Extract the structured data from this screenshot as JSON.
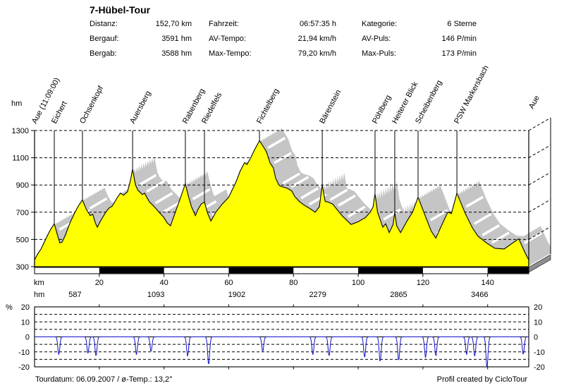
{
  "title": "7-Hübel-Tour",
  "stats": [
    {
      "label": "Distanz:",
      "value": "152,70 km"
    },
    {
      "label": "Fahrzeit:",
      "value": "06:57:35 h"
    },
    {
      "label": "Kategorie:",
      "value": "6 Sterne"
    },
    {
      "label": "Bergauf:",
      "value": "3591 hm"
    },
    {
      "label": "AV-Tempo:",
      "value": "21,94 km/h"
    },
    {
      "label": "AV-Puls:",
      "value": "146 P/min"
    },
    {
      "label": "Bergab:",
      "value": "3588 hm"
    },
    {
      "label": "Max-Tempo:",
      "value": "79,20 km/h"
    },
    {
      "label": "Max-Puls:",
      "value": "173 P/min"
    }
  ],
  "footer": {
    "left": "Tourdatum: 06.09.2007  /  ø-Temp.: 13,2°",
    "right": "Profil created by CicloTour"
  },
  "chart_data": [
    {
      "type": "area",
      "title": "Elevation profile with 3D extrusion",
      "xlabel": "km",
      "ylabel": "hm",
      "xlim": [
        0,
        152.7
      ],
      "ylim": [
        300,
        1300
      ],
      "yticks": [
        300,
        500,
        700,
        900,
        1100,
        1300
      ],
      "xticks": [
        20,
        40,
        60,
        80,
        100,
        120,
        140
      ],
      "fill_color": "#ffff00",
      "extrusion_color": "#c5c5c5",
      "floor_color": "#8f8f8f",
      "climb_label_color": "#dd0000",
      "climb_row_unit": "hm",
      "climb_labels": [
        [
          12.5,
          "587"
        ],
        [
          37.5,
          "1093"
        ],
        [
          62.5,
          "1902"
        ],
        [
          87.5,
          "2279"
        ],
        [
          112.5,
          "2865"
        ],
        [
          137.5,
          "3466"
        ]
      ],
      "markers": [
        {
          "km": 0,
          "label": "Aue (11:09:00)"
        },
        {
          "km": 6.1,
          "label": "Eichert"
        },
        {
          "km": 14.8,
          "label": "Ochsenkopf"
        },
        {
          "km": 30.3,
          "label": "Auersberg"
        },
        {
          "km": 46.6,
          "label": "Rabenberg"
        },
        {
          "km": 52.5,
          "label": "Riedelfels"
        },
        {
          "km": 69.5,
          "label": "Fichtelberg"
        },
        {
          "km": 88.9,
          "label": "Bärenstein"
        },
        {
          "km": 105.2,
          "label": "Pöhlberg"
        },
        {
          "km": 111.3,
          "label": "Heiterer Blick"
        },
        {
          "km": 118.5,
          "label": "Scheibenberg"
        },
        {
          "km": 130.5,
          "label": "PSW Markersbach"
        },
        {
          "km": 152.7,
          "label": "Aue",
          "ly": 155,
          "dx": 6
        }
      ],
      "points": [
        [
          0,
          350
        ],
        [
          1,
          395
        ],
        [
          2,
          430
        ],
        [
          3,
          480
        ],
        [
          4,
          530
        ],
        [
          5,
          575
        ],
        [
          6.1,
          615
        ],
        [
          7,
          540
        ],
        [
          7.8,
          475
        ],
        [
          8.5,
          480
        ],
        [
          9.5,
          530
        ],
        [
          11,
          625
        ],
        [
          12.5,
          700
        ],
        [
          13.5,
          745
        ],
        [
          14.8,
          790
        ],
        [
          16,
          720
        ],
        [
          17.2,
          675
        ],
        [
          18,
          685
        ],
        [
          18.8,
          620
        ],
        [
          19.4,
          590
        ],
        [
          20.5,
          640
        ],
        [
          22,
          700
        ],
        [
          23,
          730
        ],
        [
          24,
          745
        ],
        [
          25.5,
          805
        ],
        [
          26.5,
          840
        ],
        [
          27.5,
          825
        ],
        [
          28.7,
          850
        ],
        [
          29.5,
          920
        ],
        [
          30.3,
          1015
        ],
        [
          31.2,
          900
        ],
        [
          32,
          860
        ],
        [
          33.3,
          830
        ],
        [
          34,
          840
        ],
        [
          35.5,
          775
        ],
        [
          37,
          740
        ],
        [
          38.5,
          700
        ],
        [
          40,
          660
        ],
        [
          41,
          620
        ],
        [
          42,
          600
        ],
        [
          43.5,
          700
        ],
        [
          45,
          800
        ],
        [
          46.6,
          910
        ],
        [
          47.5,
          820
        ],
        [
          48.5,
          740
        ],
        [
          49.7,
          675
        ],
        [
          50.5,
          720
        ],
        [
          51.5,
          760
        ],
        [
          52.5,
          775
        ],
        [
          53.5,
          690
        ],
        [
          54.5,
          635
        ],
        [
          56,
          700
        ],
        [
          58,
          760
        ],
        [
          60,
          810
        ],
        [
          61,
          860
        ],
        [
          62.3,
          925
        ],
        [
          63.5,
          1000
        ],
        [
          64.9,
          1065
        ],
        [
          65.6,
          1050
        ],
        [
          66.7,
          1095
        ],
        [
          68,
          1160
        ],
        [
          69.5,
          1225
        ],
        [
          71,
          1170
        ],
        [
          71.7,
          1140
        ],
        [
          72.8,
          1060
        ],
        [
          73.8,
          1025
        ],
        [
          74.5,
          950
        ],
        [
          75.5,
          900
        ],
        [
          76.1,
          890
        ],
        [
          78.2,
          875
        ],
        [
          79.5,
          855
        ],
        [
          80.4,
          815
        ],
        [
          82,
          775
        ],
        [
          83.4,
          750
        ],
        [
          85.2,
          725
        ],
        [
          86.7,
          700
        ],
        [
          88,
          740
        ],
        [
          88.9,
          900
        ],
        [
          89.8,
          780
        ],
        [
          90.6,
          775
        ],
        [
          92.1,
          760
        ],
        [
          95,
          675
        ],
        [
          97.8,
          610
        ],
        [
          100,
          630
        ],
        [
          102.2,
          660
        ],
        [
          103.7,
          700
        ],
        [
          104.6,
          740
        ],
        [
          105.2,
          835
        ],
        [
          106,
          700
        ],
        [
          107.6,
          590
        ],
        [
          108.5,
          615
        ],
        [
          109.6,
          550
        ],
        [
          110.8,
          610
        ],
        [
          111.3,
          700
        ],
        [
          111.9,
          600
        ],
        [
          113.1,
          550
        ],
        [
          115.2,
          640
        ],
        [
          116.8,
          700
        ],
        [
          118.5,
          810
        ],
        [
          121.1,
          650
        ],
        [
          122.6,
          560
        ],
        [
          124,
          510
        ],
        [
          126.1,
          620
        ],
        [
          127.7,
          700
        ],
        [
          128.8,
          690
        ],
        [
          130.5,
          840
        ],
        [
          133.1,
          690
        ],
        [
          135.3,
          585
        ],
        [
          137,
          525
        ],
        [
          139.6,
          475
        ],
        [
          142.2,
          435
        ],
        [
          145.1,
          430
        ],
        [
          147.5,
          470
        ],
        [
          149.6,
          505
        ],
        [
          151.6,
          400
        ],
        [
          152.7,
          350
        ]
      ],
      "streak_positions_km": [
        6.8,
        11,
        16.2,
        31.5,
        33.8,
        36.5,
        39,
        41.5,
        48,
        50,
        54,
        71.3,
        73.2,
        75.8,
        78.5,
        81.5,
        84,
        90.5,
        93,
        96,
        107,
        113.5,
        121.5,
        123.5,
        132.5,
        135,
        137.5,
        140.5,
        150.5
      ]
    },
    {
      "type": "line",
      "title": "Gradient (%) derived from elevation profile",
      "ylabel": "%",
      "ylim": [
        -20,
        20
      ],
      "yticks": [
        20,
        10,
        0,
        -10,
        -20
      ],
      "grid_dashed": [
        15,
        10,
        5,
        -5,
        -10,
        -15
      ],
      "positive_color": "#8b1616",
      "negative_color": "#1010c8",
      "jitter_amp": 4.2,
      "spikes_pos": [
        [
          3.5,
          14
        ],
        [
          11,
          13
        ],
        [
          13.5,
          15
        ],
        [
          21.5,
          12
        ],
        [
          28.5,
          15
        ],
        [
          44.5,
          14
        ],
        [
          57,
          12
        ],
        [
          61,
          13
        ],
        [
          65,
          15
        ],
        [
          68.5,
          14
        ],
        [
          88.5,
          16
        ],
        [
          100.5,
          12
        ],
        [
          104.8,
          15
        ],
        [
          110.8,
          13
        ],
        [
          116.5,
          14
        ],
        [
          126.5,
          14
        ],
        [
          129.5,
          15
        ],
        [
          146.5,
          12
        ]
      ],
      "spikes_neg": [
        [
          7.5,
          -12
        ],
        [
          16.5,
          -11
        ],
        [
          19,
          -13
        ],
        [
          31.5,
          -12
        ],
        [
          36,
          -10
        ],
        [
          47.3,
          -13
        ],
        [
          53.8,
          -19
        ],
        [
          70.5,
          -10
        ],
        [
          86,
          -12
        ],
        [
          91,
          -13
        ],
        [
          102,
          -14
        ],
        [
          106.8,
          -17
        ],
        [
          112.5,
          -16
        ],
        [
          120.8,
          -14
        ],
        [
          124,
          -13
        ],
        [
          133.5,
          -12
        ],
        [
          136,
          -13
        ],
        [
          139.8,
          -21
        ],
        [
          151,
          -12
        ]
      ]
    }
  ]
}
